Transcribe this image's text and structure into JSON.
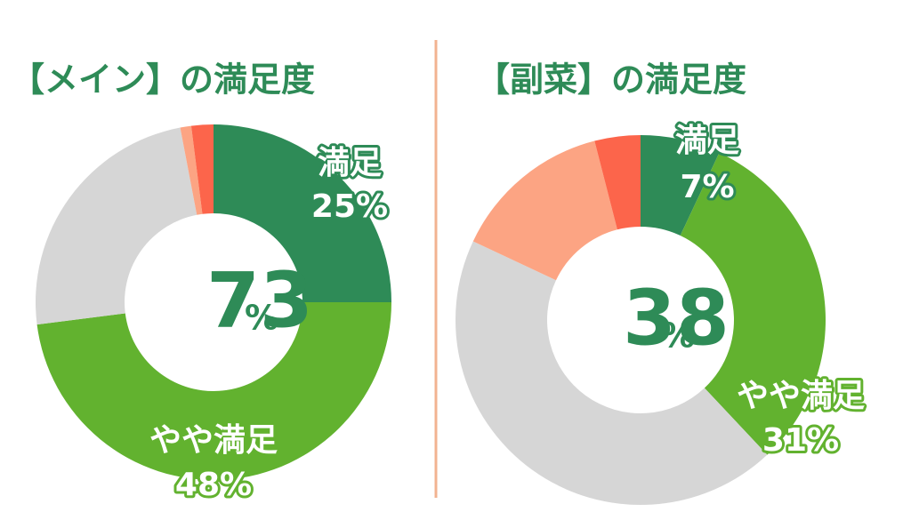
{
  "chart_data": [
    {
      "type": "donut",
      "title": "【メイン】の満足度",
      "categories": [
        "満足",
        "やや満足",
        null,
        null,
        null
      ],
      "values": [
        25,
        48,
        24,
        1,
        2
      ],
      "value_labels": [
        "25%",
        "48%",
        null,
        null,
        null
      ],
      "colors": [
        "#2e8b57",
        "#62b22f",
        "#d6d6d6",
        "#fca483",
        "#fc654b"
      ],
      "center_label": "73",
      "center_unit": "%"
    },
    {
      "type": "donut",
      "title": "【副菜】の満足度",
      "categories": [
        "満足",
        "やや満足",
        null,
        null,
        null
      ],
      "values": [
        7,
        31,
        44,
        14,
        4
      ],
      "value_labels": [
        "7%",
        "31%",
        null,
        null,
        null
      ],
      "colors": [
        "#2e8b57",
        "#62b22f",
        "#d6d6d6",
        "#fca483",
        "#fc654b"
      ],
      "center_label": "38",
      "center_unit": "%"
    }
  ]
}
